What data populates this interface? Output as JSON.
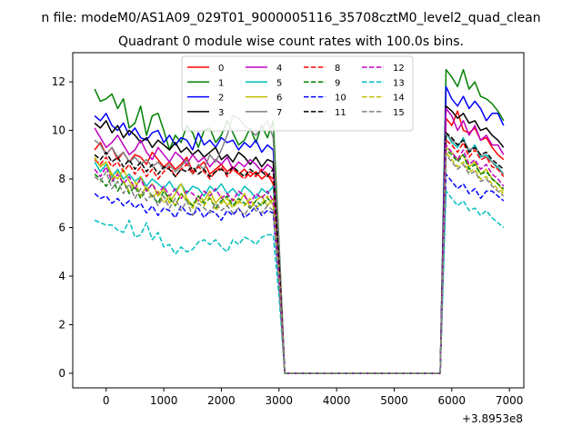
{
  "figure": {
    "suptitle": "n file: modeM0/AS1A09_029T01_9000005116_35708cztM0_level2_quad_clean",
    "offset_label": "+3.8953e8"
  },
  "chart_data": {
    "type": "line",
    "title": "Quadrant 0 module wise count rates with 100.0s bins.",
    "xlabel": "",
    "ylabel": "",
    "xlim": [
      -580,
      7250
    ],
    "ylim": [
      -0.6,
      13.2
    ],
    "x_ticks": [
      0,
      1000,
      2000,
      3000,
      4000,
      5000,
      6000,
      7000
    ],
    "y_ticks": [
      0,
      2,
      4,
      6,
      8,
      10,
      12
    ],
    "x_offset": "+3.8953e8",
    "legend_position": "upper center",
    "legend_columns": 4,
    "gap_start": 3100,
    "gap_end": 5800,
    "bin_width": 100,
    "x_start": -200,
    "x_end": 6900,
    "series": [
      {
        "name": "0",
        "color": "#ff0000",
        "dash": "solid",
        "y1": [
          9.2,
          9.5,
          9.0,
          9.3,
          8.8,
          9.1,
          8.7,
          9.0,
          8.9,
          8.6,
          9.1,
          8.8,
          8.5,
          8.7,
          8.4,
          8.6,
          8.9,
          8.3,
          8.5,
          8.7,
          8.2,
          8.4,
          8.6,
          8.3,
          8.5,
          8.2,
          8.4,
          8.1,
          8.3,
          8.0,
          8.2,
          7.8,
          7.9
        ],
        "y2": [
          10.5,
          10.2,
          10.8,
          10.0,
          9.9,
          10.1,
          9.6,
          9.7,
          9.3,
          9.0,
          8.8
        ]
      },
      {
        "name": "1",
        "color": "#008000",
        "dash": "solid",
        "y1": [
          11.7,
          11.2,
          11.3,
          11.5,
          10.9,
          11.3,
          10.1,
          10.3,
          11.0,
          9.8,
          10.6,
          10.7,
          10.0,
          9.2,
          9.8,
          9.5,
          10.2,
          9.9,
          9.3,
          10.0,
          10.1,
          9.5,
          9.8,
          10.4,
          9.9,
          9.4,
          9.6,
          10.1,
          9.5,
          10.2,
          9.7,
          10.4,
          9.9
        ],
        "y2": [
          12.5,
          12.2,
          11.8,
          12.5,
          11.7,
          12.0,
          11.4,
          11.3,
          11.1,
          10.8,
          10.4
        ]
      },
      {
        "name": "2",
        "color": "#0000ff",
        "dash": "solid",
        "y1": [
          10.6,
          10.4,
          10.7,
          10.2,
          10.0,
          10.3,
          9.8,
          10.1,
          9.7,
          9.6,
          9.9,
          10.0,
          9.5,
          9.8,
          9.4,
          9.7,
          9.6,
          9.2,
          9.9,
          9.4,
          9.6,
          9.3,
          9.7,
          9.5,
          9.6,
          9.2,
          9.5,
          9.3,
          9.6,
          9.1,
          9.4,
          9.2,
          9.3
        ],
        "y2": [
          11.8,
          11.3,
          11.0,
          11.4,
          10.9,
          11.2,
          10.9,
          10.4,
          10.7,
          10.7,
          10.2
        ]
      },
      {
        "name": "3",
        "color": "#000000",
        "dash": "solid",
        "y1": [
          10.3,
          10.1,
          10.4,
          9.9,
          10.2,
          9.7,
          10.0,
          9.8,
          9.5,
          9.7,
          9.3,
          9.6,
          9.4,
          9.2,
          9.5,
          9.1,
          9.3,
          9.0,
          9.2,
          8.9,
          9.1,
          9.3,
          8.8,
          9.0,
          8.7,
          9.1,
          8.9,
          8.6,
          8.9,
          8.5,
          8.8,
          8.7,
          8.9
        ],
        "y2": [
          11.0,
          10.8,
          10.5,
          10.7,
          10.3,
          10.4,
          10.0,
          10.1,
          9.8,
          9.6,
          9.3
        ]
      },
      {
        "name": "4",
        "color": "#bf00bf",
        "dash": "solid",
        "y1": [
          10.1,
          9.7,
          9.3,
          9.5,
          9.8,
          9.4,
          9.0,
          9.2,
          9.6,
          9.1,
          8.8,
          9.3,
          9.0,
          8.7,
          9.1,
          8.9,
          8.6,
          9.0,
          8.7,
          8.9,
          8.5,
          8.8,
          8.6,
          8.9,
          8.4,
          8.7,
          8.5,
          8.8,
          8.6,
          8.3,
          8.6,
          8.4,
          8.7
        ],
        "y2": [
          10.9,
          10.6,
          10.0,
          10.4,
          9.8,
          10.2,
          9.6,
          9.8,
          9.4,
          9.4,
          9.0
        ]
      },
      {
        "name": "5",
        "color": "#00bfbf",
        "dash": "solid",
        "y1": [
          8.7,
          8.3,
          8.6,
          8.1,
          8.4,
          8.0,
          8.2,
          7.9,
          8.1,
          7.7,
          8.0,
          7.8,
          7.6,
          7.9,
          7.5,
          7.8,
          7.4,
          7.7,
          7.6,
          7.3,
          7.7,
          7.5,
          7.8,
          7.4,
          7.6,
          7.3,
          7.7,
          7.5,
          7.2,
          7.6,
          7.4,
          7.7,
          7.5
        ],
        "y2": [
          9.9,
          9.5,
          9.3,
          9.7,
          9.1,
          9.4,
          8.9,
          9.0,
          8.7,
          8.5,
          8.2
        ]
      },
      {
        "name": "6",
        "color": "#bfbf00",
        "dash": "solid",
        "y1": [
          8.9,
          8.5,
          8.7,
          8.2,
          8.0,
          8.4,
          7.9,
          7.6,
          8.1,
          7.5,
          7.8,
          7.3,
          7.6,
          7.0,
          7.4,
          7.8,
          7.2,
          6.9,
          7.3,
          7.1,
          7.5,
          7.0,
          7.3,
          6.9,
          7.2,
          7.0,
          7.4,
          6.8,
          7.1,
          7.3,
          6.9,
          7.2,
          7.0
        ],
        "y2": [
          9.3,
          9.1,
          8.8,
          9.0,
          8.5,
          8.7,
          8.2,
          8.4,
          8.0,
          7.8,
          7.5
        ]
      },
      {
        "name": "7",
        "color": "#808080",
        "dash": "solid",
        "y1": [
          9.6,
          9.4,
          9.0,
          9.3,
          8.9,
          9.1,
          8.7,
          8.9,
          8.6,
          8.8,
          8.5,
          8.7,
          8.4,
          8.6,
          8.3,
          8.5,
          8.8,
          8.2,
          8.6,
          8.4,
          9.0,
          8.7,
          9.2,
          9.8,
          10.6,
          10.5,
          10.2,
          10.0,
          9.8,
          10.1,
          10.4,
          9.7,
          9.6
        ],
        "y2": [
          9.9,
          9.6,
          9.4,
          9.6,
          9.2,
          9.3,
          9.0,
          8.9,
          8.7,
          8.4,
          8.2
        ]
      },
      {
        "name": "8",
        "color": "#ff0000",
        "dash": "dashed",
        "y1": [
          8.8,
          8.6,
          8.9,
          8.5,
          8.7,
          8.3,
          8.6,
          8.2,
          8.5,
          8.1,
          8.4,
          8.0,
          8.3,
          8.5,
          8.1,
          8.4,
          8.6,
          8.2,
          8.5,
          8.3,
          8.0,
          8.3,
          8.5,
          8.1,
          8.4,
          8.2,
          8.0,
          8.3,
          8.1,
          8.4,
          8.2,
          8.0,
          8.3
        ],
        "y2": [
          9.6,
          9.4,
          9.1,
          9.5,
          8.9,
          9.2,
          8.8,
          8.9,
          8.5,
          8.4,
          8.1
        ]
      },
      {
        "name": "9",
        "color": "#008000",
        "dash": "dashed",
        "y1": [
          8.2,
          8.0,
          7.7,
          8.1,
          7.5,
          7.9,
          7.4,
          7.7,
          7.2,
          7.6,
          7.3,
          7.0,
          7.5,
          7.2,
          6.9,
          7.4,
          7.1,
          6.9,
          7.3,
          7.0,
          7.2,
          6.8,
          7.1,
          7.3,
          6.9,
          7.2,
          7.0,
          6.8,
          7.1,
          6.9,
          7.2,
          7.0,
          6.9
        ],
        "y2": [
          9.2,
          9.0,
          8.7,
          9.0,
          8.4,
          8.6,
          8.2,
          8.3,
          8.0,
          7.8,
          7.6
        ]
      },
      {
        "name": "10",
        "color": "#0000ff",
        "dash": "dashed",
        "y1": [
          7.4,
          7.2,
          7.3,
          7.0,
          7.2,
          6.9,
          7.1,
          6.8,
          7.0,
          6.6,
          6.9,
          6.5,
          6.8,
          6.7,
          6.4,
          6.9,
          6.6,
          6.5,
          6.8,
          6.4,
          6.7,
          6.6,
          6.3,
          6.7,
          6.5,
          6.8,
          6.4,
          6.6,
          6.9,
          6.5,
          6.7,
          6.6,
          6.8
        ],
        "y2": [
          8.2,
          7.9,
          7.6,
          7.8,
          7.4,
          7.6,
          7.2,
          7.5,
          7.5,
          7.3,
          7.1
        ]
      },
      {
        "name": "11",
        "color": "#000000",
        "dash": "dashed",
        "y1": [
          9.0,
          8.8,
          9.1,
          8.7,
          8.9,
          8.5,
          8.8,
          8.4,
          8.7,
          8.3,
          8.6,
          8.2,
          8.5,
          8.4,
          8.1,
          8.4,
          8.3,
          8.5,
          8.2,
          8.4,
          8.1,
          8.3,
          8.4,
          8.2,
          8.5,
          8.3,
          8.1,
          8.4,
          8.2,
          8.3,
          8.1,
          8.4,
          8.3
        ],
        "y2": [
          9.9,
          9.7,
          9.4,
          9.6,
          9.1,
          9.3,
          9.0,
          9.1,
          8.8,
          8.6,
          8.4
        ]
      },
      {
        "name": "12",
        "color": "#bf00bf",
        "dash": "dashed",
        "y1": [
          8.4,
          8.1,
          8.5,
          7.9,
          8.2,
          7.8,
          8.1,
          7.6,
          8.0,
          7.5,
          7.8,
          7.4,
          7.7,
          7.3,
          7.6,
          7.2,
          7.5,
          7.4,
          7.1,
          7.5,
          7.3,
          7.6,
          7.2,
          7.4,
          7.1,
          7.5,
          7.3,
          7.0,
          7.4,
          7.2,
          7.5,
          7.1,
          7.3
        ],
        "y2": [
          9.4,
          9.1,
          8.8,
          9.2,
          8.6,
          8.8,
          8.4,
          8.6,
          8.2,
          8.0,
          7.7
        ]
      },
      {
        "name": "13",
        "color": "#00bfbf",
        "dash": "dashed",
        "y1": [
          6.3,
          6.2,
          6.1,
          6.1,
          5.9,
          5.8,
          6.3,
          5.6,
          5.7,
          6.2,
          5.5,
          5.8,
          5.2,
          5.3,
          4.9,
          5.2,
          5.0,
          5.1,
          5.4,
          5.5,
          5.3,
          5.5,
          5.2,
          5.0,
          5.5,
          5.3,
          5.6,
          5.5,
          5.3,
          5.6,
          5.7,
          5.7,
          5.8
        ],
        "y2": [
          7.5,
          7.2,
          6.9,
          7.1,
          6.7,
          6.8,
          6.5,
          6.7,
          6.4,
          6.2,
          6.0
        ]
      },
      {
        "name": "14",
        "color": "#bfbf00",
        "dash": "dashed",
        "y1": [
          8.9,
          8.5,
          8.7,
          8.0,
          8.3,
          7.9,
          7.5,
          7.9,
          7.3,
          7.7,
          7.2,
          7.5,
          7.0,
          7.3,
          6.9,
          7.4,
          7.1,
          6.8,
          7.2,
          6.9,
          7.3,
          6.7,
          7.0,
          7.2,
          6.8,
          7.1,
          6.9,
          7.2,
          6.8,
          7.0,
          7.3,
          6.9,
          7.1
        ],
        "y2": [
          9.1,
          8.8,
          8.5,
          8.7,
          8.3,
          8.4,
          8.0,
          8.1,
          7.8,
          7.6,
          7.4
        ]
      },
      {
        "name": "15",
        "color": "#808080",
        "dash": "dashed",
        "y1": [
          8.1,
          7.9,
          8.3,
          7.6,
          7.9,
          7.4,
          7.8,
          7.2,
          7.6,
          7.1,
          7.4,
          6.9,
          7.3,
          6.8,
          7.2,
          6.7,
          7.1,
          6.5,
          7.0,
          6.8,
          6.6,
          7.0,
          6.7,
          6.9,
          6.6,
          6.8,
          6.5,
          6.9,
          6.7,
          6.6,
          6.9,
          6.7,
          6.8
        ],
        "y2": [
          9.0,
          8.7,
          8.4,
          8.6,
          8.2,
          8.3,
          7.9,
          8.0,
          7.7,
          7.5,
          7.3
        ]
      }
    ]
  }
}
